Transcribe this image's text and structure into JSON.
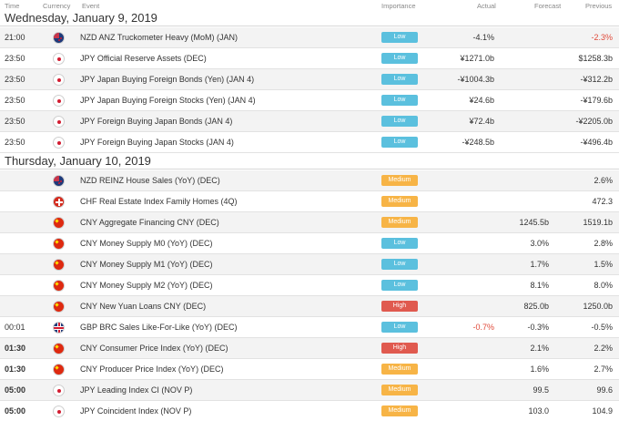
{
  "columns": {
    "time": "Time",
    "currency": "Currency",
    "event": "Event",
    "importance": "Importance",
    "actual": "Actual",
    "forecast": "Forecast",
    "previous": "Previous"
  },
  "days": [
    {
      "label": "Wednesday, January 9, 2019",
      "events": [
        {
          "time": "21:00",
          "bold": false,
          "flag": "nz",
          "flag_icon": "nz-flag-icon",
          "event": "NZD ANZ Truckometer Heavy (MoM) (JAN)",
          "importance": "Low",
          "imp_class": "low",
          "actual": "-4.1%",
          "actual_neg": false,
          "forecast": "",
          "previous": "-2.3%",
          "previous_neg": true
        },
        {
          "time": "23:50",
          "bold": false,
          "flag": "jp",
          "flag_icon": "jp-flag-icon",
          "event": "JPY Official Reserve Assets (DEC)",
          "importance": "Low",
          "imp_class": "low",
          "actual": "¥1271.0b",
          "actual_neg": false,
          "forecast": "",
          "previous": "$1258.3b",
          "previous_neg": false
        },
        {
          "time": "23:50",
          "bold": false,
          "flag": "jp",
          "flag_icon": "jp-flag-icon",
          "event": "JPY Japan Buying Foreign Bonds (Yen) (JAN 4)",
          "importance": "Low",
          "imp_class": "low",
          "actual": "-¥1004.3b",
          "actual_neg": false,
          "forecast": "",
          "previous": "-¥312.2b",
          "previous_neg": false
        },
        {
          "time": "23:50",
          "bold": false,
          "flag": "jp",
          "flag_icon": "jp-flag-icon",
          "event": "JPY Japan Buying Foreign Stocks (Yen) (JAN 4)",
          "importance": "Low",
          "imp_class": "low",
          "actual": "¥24.6b",
          "actual_neg": false,
          "forecast": "",
          "previous": "-¥179.6b",
          "previous_neg": false
        },
        {
          "time": "23:50",
          "bold": false,
          "flag": "jp",
          "flag_icon": "jp-flag-icon",
          "event": "JPY Foreign Buying Japan Bonds (JAN 4)",
          "importance": "Low",
          "imp_class": "low",
          "actual": "¥72.4b",
          "actual_neg": false,
          "forecast": "",
          "previous": "-¥2205.0b",
          "previous_neg": false
        },
        {
          "time": "23:50",
          "bold": false,
          "flag": "jp",
          "flag_icon": "jp-flag-icon",
          "event": "JPY Foreign Buying Japan Stocks (JAN 4)",
          "importance": "Low",
          "imp_class": "low",
          "actual": "-¥248.5b",
          "actual_neg": false,
          "forecast": "",
          "previous": "-¥496.4b",
          "previous_neg": false
        }
      ]
    },
    {
      "label": "Thursday, January 10, 2019",
      "events": [
        {
          "time": "",
          "bold": false,
          "flag": "nz",
          "flag_icon": "nz-flag-icon",
          "event": "NZD REINZ House Sales (YoY) (DEC)",
          "importance": "Medium",
          "imp_class": "medium",
          "actual": "",
          "actual_neg": false,
          "forecast": "",
          "previous": "2.6%",
          "previous_neg": false
        },
        {
          "time": "",
          "bold": false,
          "flag": "ch",
          "flag_icon": "ch-flag-icon",
          "event": "CHF Real Estate Index Family Homes (4Q)",
          "importance": "Medium",
          "imp_class": "medium",
          "actual": "",
          "actual_neg": false,
          "forecast": "",
          "previous": "472.3",
          "previous_neg": false
        },
        {
          "time": "",
          "bold": false,
          "flag": "cn",
          "flag_icon": "cn-flag-icon",
          "event": "CNY Aggregate Financing CNY (DEC)",
          "importance": "Medium",
          "imp_class": "medium",
          "actual": "",
          "actual_neg": false,
          "forecast": "1245.5b",
          "previous": "1519.1b",
          "previous_neg": false
        },
        {
          "time": "",
          "bold": false,
          "flag": "cn",
          "flag_icon": "cn-flag-icon",
          "event": "CNY Money Supply M0 (YoY) (DEC)",
          "importance": "Low",
          "imp_class": "low",
          "actual": "",
          "actual_neg": false,
          "forecast": "3.0%",
          "previous": "2.8%",
          "previous_neg": false
        },
        {
          "time": "",
          "bold": false,
          "flag": "cn",
          "flag_icon": "cn-flag-icon",
          "event": "CNY Money Supply M1 (YoY) (DEC)",
          "importance": "Low",
          "imp_class": "low",
          "actual": "",
          "actual_neg": false,
          "forecast": "1.7%",
          "previous": "1.5%",
          "previous_neg": false
        },
        {
          "time": "",
          "bold": false,
          "flag": "cn",
          "flag_icon": "cn-flag-icon",
          "event": "CNY Money Supply M2 (YoY) (DEC)",
          "importance": "Low",
          "imp_class": "low",
          "actual": "",
          "actual_neg": false,
          "forecast": "8.1%",
          "previous": "8.0%",
          "previous_neg": false
        },
        {
          "time": "",
          "bold": false,
          "flag": "cn",
          "flag_icon": "cn-flag-icon",
          "event": "CNY New Yuan Loans CNY (DEC)",
          "importance": "High",
          "imp_class": "high",
          "actual": "",
          "actual_neg": false,
          "forecast": "825.0b",
          "previous": "1250.0b",
          "previous_neg": false
        },
        {
          "time": "00:01",
          "bold": false,
          "flag": "gb",
          "flag_icon": "gb-flag-icon",
          "event": "GBP BRC Sales Like-For-Like (YoY) (DEC)",
          "importance": "Low",
          "imp_class": "low",
          "actual": "-0.7%",
          "actual_neg": true,
          "forecast": "-0.3%",
          "previous": "-0.5%",
          "previous_neg": false
        },
        {
          "time": "01:30",
          "bold": true,
          "flag": "cn",
          "flag_icon": "cn-flag-icon",
          "event": "CNY Consumer Price Index (YoY) (DEC)",
          "importance": "High",
          "imp_class": "high",
          "actual": "",
          "actual_neg": false,
          "forecast": "2.1%",
          "previous": "2.2%",
          "previous_neg": false
        },
        {
          "time": "01:30",
          "bold": true,
          "flag": "cn",
          "flag_icon": "cn-flag-icon",
          "event": "CNY Producer Price Index (YoY) (DEC)",
          "importance": "Medium",
          "imp_class": "medium",
          "actual": "",
          "actual_neg": false,
          "forecast": "1.6%",
          "previous": "2.7%",
          "previous_neg": false
        },
        {
          "time": "05:00",
          "bold": true,
          "flag": "jp",
          "flag_icon": "jp-flag-icon",
          "event": "JPY Leading Index CI (NOV P)",
          "importance": "Medium",
          "imp_class": "medium",
          "actual": "",
          "actual_neg": false,
          "forecast": "99.5",
          "previous": "99.6",
          "previous_neg": false
        },
        {
          "time": "05:00",
          "bold": true,
          "flag": "jp",
          "flag_icon": "jp-flag-icon",
          "event": "JPY Coincident Index (NOV P)",
          "importance": "Medium",
          "imp_class": "medium",
          "actual": "",
          "actual_neg": false,
          "forecast": "103.0",
          "previous": "104.9",
          "previous_neg": false
        }
      ]
    }
  ]
}
